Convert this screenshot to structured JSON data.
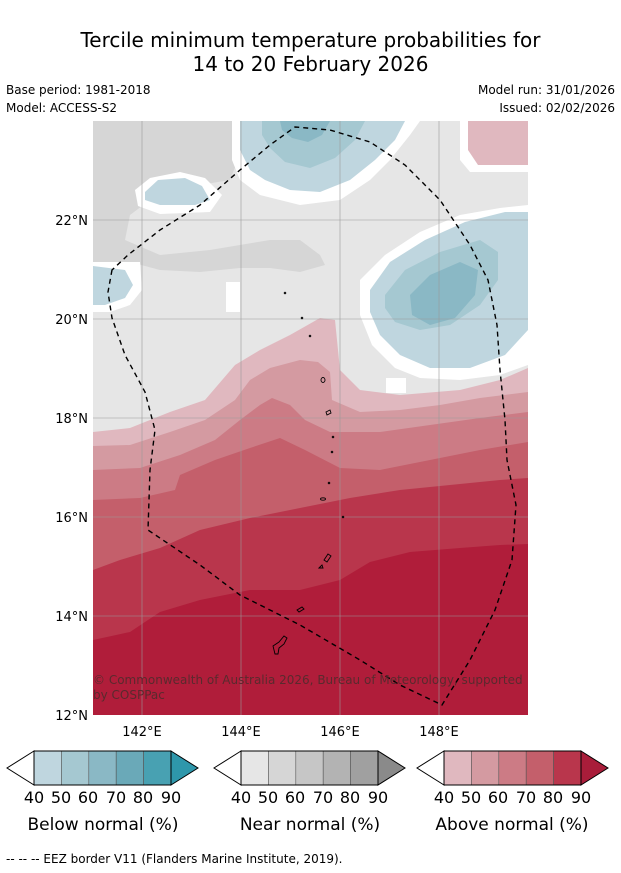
{
  "title_line1": "Tercile minimum temperature probabilities for",
  "title_line2": "14 to 20 February 2026",
  "meta": {
    "base_period": "Base period: 1981-2018",
    "model": "Model: ACCESS-S2",
    "model_run": "Model run: 31/01/2026",
    "issued": "Issued: 02/02/2026"
  },
  "map": {
    "lat_labels": [
      "22°N",
      "20°N",
      "18°N",
      "16°N",
      "14°N",
      "12°N"
    ],
    "lon_labels": [
      "142°E",
      "144°E",
      "146°E",
      "148°E"
    ],
    "copyright_line1": "© Commonwealth of Australia 2026, Bureau of Meteorology, supported",
    "copyright_line2": "by COSPPac"
  },
  "colorbars": [
    {
      "title": "Below normal (%)",
      "ticks": [
        "40",
        "50",
        "60",
        "70",
        "80",
        "90"
      ],
      "colors": [
        "#bfd6df",
        "#a5c8d1",
        "#8ab8c5",
        "#6aa9b8",
        "#48a1b2",
        "#2e97ab"
      ]
    },
    {
      "title": "Near normal (%)",
      "ticks": [
        "40",
        "50",
        "60",
        "70",
        "80",
        "90"
      ],
      "colors": [
        "#e6e6e6",
        "#d6d6d6",
        "#c6c6c6",
        "#b3b3b3",
        "#a0a0a0",
        "#8a8a8a"
      ]
    },
    {
      "title": "Above normal (%)",
      "ticks": [
        "40",
        "50",
        "60",
        "70",
        "80",
        "90"
      ],
      "colors": [
        "#e0b8bf",
        "#d49aa1",
        "#cc7b85",
        "#c45f6b",
        "#b9364c",
        "#a91d3a"
      ]
    }
  ],
  "footnote": "--  --  -- EEZ border V11 (Flanders Marine Institute, 2019)."
}
